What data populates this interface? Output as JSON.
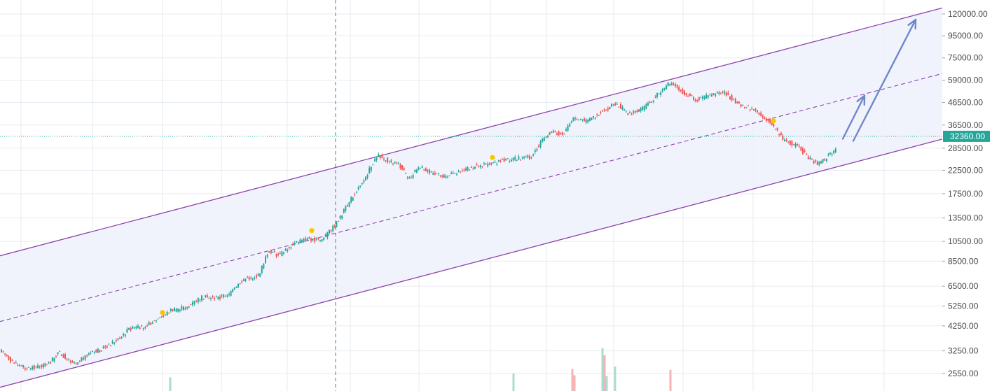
{
  "chart_data": {
    "type": "candlestick",
    "scale": "log",
    "grid": true,
    "legend": "none",
    "y_ticks": [
      2550,
      3250,
      4250,
      5250,
      6500,
      8500,
      10500,
      13500,
      17500,
      22500,
      28500,
      36500,
      46500,
      59000,
      75000,
      95000,
      120000
    ],
    "y_tick_labels": [
      "2550.00",
      "3250.00",
      "4250.00",
      "5250.00",
      "6500.00",
      "8500.00",
      "10500.00",
      "13500.00",
      "17500.00",
      "22500.00",
      "28500.00",
      "36500.00",
      "46500.00",
      "59000.00",
      "75000.00",
      "95000.00",
      "120000.00"
    ],
    "current_price": 32360,
    "current_price_label": "32360.00",
    "colors": {
      "up": "#26a69a",
      "down": "#ef5350",
      "channel_line": "#8e44ad",
      "channel_fill": "#eef1fb",
      "current_price": "#26a69a",
      "projection_arrow": "#6f87c9",
      "marker": "#f7c600",
      "grid": "#e6ebf1"
    },
    "price_path": [
      [
        0,
        3400
      ],
      [
        10,
        3050
      ],
      [
        25,
        2800
      ],
      [
        40,
        2700
      ],
      [
        55,
        2750
      ],
      [
        70,
        2800
      ],
      [
        85,
        3200
      ],
      [
        100,
        2950
      ],
      [
        110,
        2850
      ],
      [
        125,
        3100
      ],
      [
        145,
        3300
      ],
      [
        160,
        3500
      ],
      [
        175,
        3750
      ],
      [
        185,
        4100
      ],
      [
        205,
        4200
      ],
      [
        225,
        4500
      ],
      [
        245,
        5000
      ],
      [
        270,
        5200
      ],
      [
        290,
        5800
      ],
      [
        310,
        5700
      ],
      [
        330,
        6000
      ],
      [
        350,
        7000
      ],
      [
        370,
        7200
      ],
      [
        385,
        9500
      ],
      [
        400,
        9000
      ],
      [
        420,
        10200
      ],
      [
        440,
        10800
      ],
      [
        460,
        10600
      ],
      [
        480,
        12500
      ],
      [
        500,
        16000
      ],
      [
        515,
        19000
      ],
      [
        530,
        23000
      ],
      [
        540,
        26500
      ],
      [
        555,
        25000
      ],
      [
        570,
        24000
      ],
      [
        585,
        20500
      ],
      [
        600,
        23500
      ],
      [
        620,
        21500
      ],
      [
        640,
        21000
      ],
      [
        660,
        22500
      ],
      [
        680,
        23500
      ],
      [
        700,
        24000
      ],
      [
        720,
        25000
      ],
      [
        740,
        25500
      ],
      [
        760,
        26000
      ],
      [
        775,
        31000
      ],
      [
        790,
        34000
      ],
      [
        805,
        33000
      ],
      [
        820,
        39000
      ],
      [
        840,
        38000
      ],
      [
        860,
        42000
      ],
      [
        880,
        46000
      ],
      [
        900,
        41000
      ],
      [
        920,
        44000
      ],
      [
        945,
        52000
      ],
      [
        958,
        58000
      ],
      [
        975,
        52000
      ],
      [
        995,
        48000
      ],
      [
        1015,
        50000
      ],
      [
        1035,
        52000
      ],
      [
        1055,
        46000
      ],
      [
        1075,
        43000
      ],
      [
        1095,
        39000
      ],
      [
        1105,
        36000
      ],
      [
        1120,
        31000
      ],
      [
        1140,
        29000
      ],
      [
        1155,
        26000
      ],
      [
        1168,
        24000
      ],
      [
        1180,
        25500
      ],
      [
        1193,
        28000
      ]
    ],
    "volumes": [
      [
        243,
        2450,
        "#a8dccf"
      ],
      [
        733,
        2550,
        "#a8dccf"
      ],
      [
        817,
        2680,
        "#f5b3b3"
      ],
      [
        820,
        2500,
        "#f5b3b3"
      ],
      [
        860,
        3350,
        "#a8dccf"
      ],
      [
        863,
        3100,
        "#f5b3b3"
      ],
      [
        866,
        2480,
        "#a8dccf"
      ],
      [
        878,
        2750,
        "#a8dccf"
      ],
      [
        957,
        2650,
        "#f5b3b3"
      ]
    ],
    "markers": [
      [
        232,
        4900
      ],
      [
        445,
        11800
      ],
      [
        703,
        25800
      ],
      [
        1104,
        38200
      ]
    ],
    "channel": {
      "upper": [
        [
          0,
          9000
        ],
        [
          1345,
          128000
        ]
      ],
      "lower": [
        [
          0,
          2200
        ],
        [
          1345,
          31400
        ]
      ],
      "mid": [
        [
          0,
          4450
        ],
        [
          1345,
          63400
        ]
      ]
    },
    "crosshair_x": 479,
    "projection_arrows": [
      [
        [
          1203,
          31500
        ],
        [
          1234,
          50000
        ]
      ],
      [
        [
          1218,
          30800
        ],
        [
          1307,
          113000
        ]
      ]
    ]
  }
}
